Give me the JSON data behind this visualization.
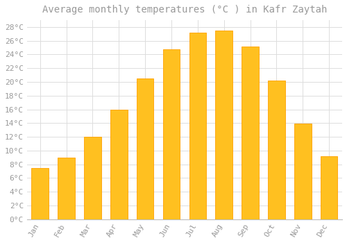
{
  "title": "Average monthly temperatures (°C ) in Kafr Zaytah",
  "months": [
    "Jan",
    "Feb",
    "Mar",
    "Apr",
    "May",
    "Jun",
    "Jul",
    "Aug",
    "Sep",
    "Oct",
    "Nov",
    "Dec"
  ],
  "values": [
    7.5,
    9.0,
    12.0,
    16.0,
    20.5,
    24.8,
    27.2,
    27.5,
    25.2,
    20.2,
    13.9,
    9.2
  ],
  "bar_color": "#FFC020",
  "bar_edge_color": "#FFA000",
  "background_color": "#FFFFFF",
  "grid_color": "#DDDDDD",
  "text_color": "#999999",
  "ylim": [
    0,
    29
  ],
  "yticks": [
    0,
    2,
    4,
    6,
    8,
    10,
    12,
    14,
    16,
    18,
    20,
    22,
    24,
    26,
    28
  ],
  "title_fontsize": 10,
  "tick_fontsize": 8
}
